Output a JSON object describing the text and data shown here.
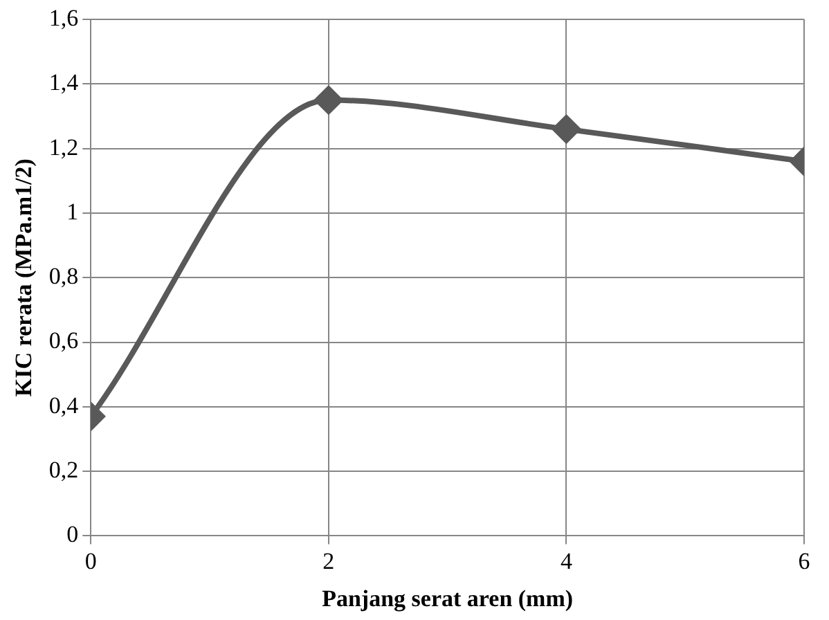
{
  "chart_data": {
    "type": "line",
    "xlabel": "Panjang serat aren (mm)",
    "ylabel": "KIC rerata (MPa.m1/2)",
    "x": [
      0,
      2,
      4,
      6
    ],
    "series": [
      {
        "color": "#595959",
        "values": [
          0.37,
          1.35,
          1.26,
          1.16
        ]
      }
    ],
    "xlim": [
      0,
      6
    ],
    "xticks": [
      0,
      2,
      4,
      6
    ],
    "ylim": [
      0,
      1.6
    ],
    "yticks": [
      0,
      {
        "value": 0.2,
        "label": "0,2"
      },
      {
        "value": 0.4,
        "label": "0,4"
      },
      {
        "value": 0.6,
        "label": "0,6"
      },
      {
        "value": 0.8,
        "label": "0,8"
      },
      1,
      {
        "value": 1.2,
        "label": "1,2"
      },
      {
        "value": 1.4,
        "label": "1,4"
      },
      {
        "value": 1.6,
        "label": "1,6"
      }
    ],
    "grid": true,
    "legend": false,
    "marker": "diamond",
    "line_style": "solid"
  }
}
